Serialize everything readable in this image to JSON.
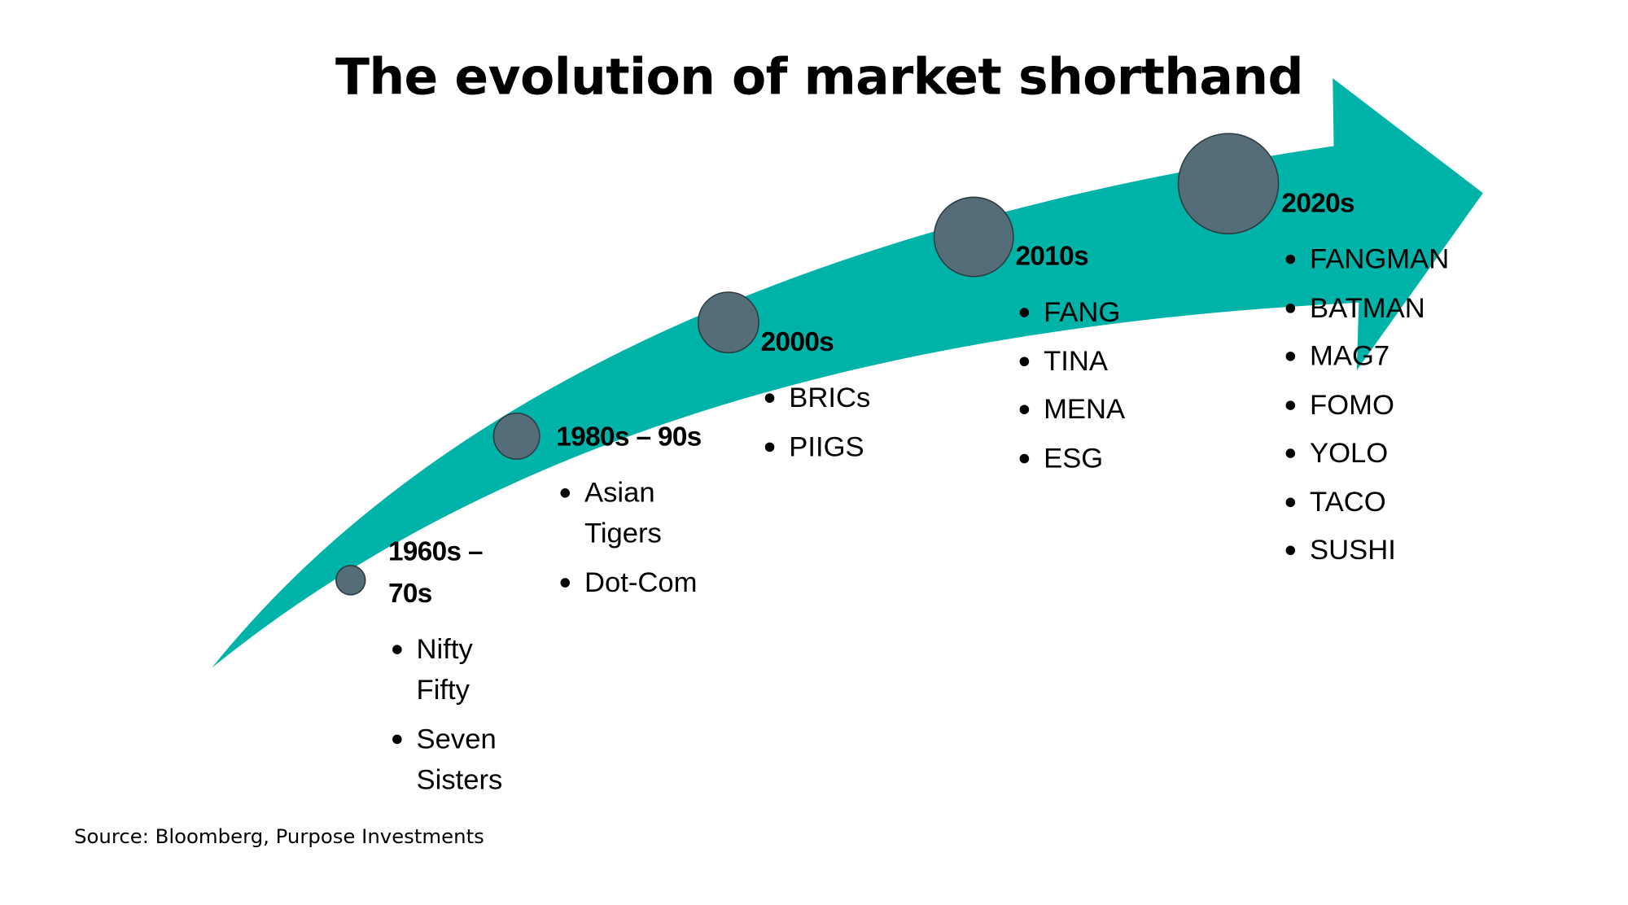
{
  "title": "The evolution of market shorthand",
  "colors": {
    "arrow": "#00b3a9",
    "milestone": "#546d78",
    "milestone_outline": "#2c3a40"
  },
  "eras": [
    {
      "label": "1960s – 70s",
      "items": [
        "Nifty Fifty",
        "Seven Sisters"
      ]
    },
    {
      "label": "1980s – 90s",
      "items": [
        "Asian Tigers",
        "Dot-Com"
      ]
    },
    {
      "label": "2000s",
      "items": [
        "BRICs",
        "PIIGS"
      ]
    },
    {
      "label": "2010s",
      "items": [
        "FANG",
        "TINA",
        "MENA",
        "ESG"
      ]
    },
    {
      "label": "2020s",
      "items": [
        "FANGMAN",
        "BATMAN",
        "MAG7",
        "FOMO",
        "YOLO",
        "TACO",
        "SUSHI"
      ]
    }
  ],
  "source": "Source: Bloomberg, Purpose Investments"
}
